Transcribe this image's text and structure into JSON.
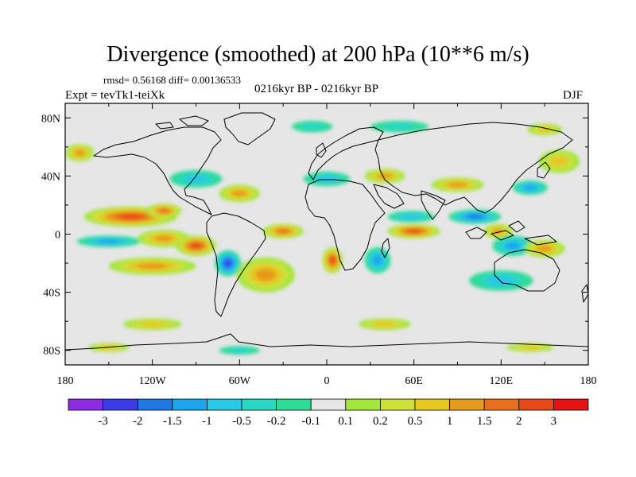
{
  "title": "Divergence (smoothed) at 200 hPa (10**6 m/s)",
  "stats": "rmsd= 0.56168  diff= 0.00136533",
  "experiment": "Expt = tevTk1-teiXk",
  "period": "0216kyr BP - 0216kyr BP",
  "season": "DJF",
  "colors": {
    "neutral": "#e6e6e6",
    "legend": [
      "#8b2be2",
      "#3b3bea",
      "#1e78e6",
      "#1ea4ec",
      "#29c8e6",
      "#2ad7c2",
      "#2edc96",
      "#e6e6e6",
      "#a3e63c",
      "#cde03c",
      "#e6c821",
      "#e69a1e",
      "#e8701c",
      "#e84818",
      "#e41414"
    ]
  },
  "axes": {
    "y_ticks": [
      {
        "value": 80,
        "label": "80N"
      },
      {
        "value": 40,
        "label": "40N"
      },
      {
        "value": 0,
        "label": "0"
      },
      {
        "value": -40,
        "label": "40S"
      },
      {
        "value": -80,
        "label": "80S"
      }
    ],
    "x_ticks": [
      {
        "value": -180,
        "label": "180"
      },
      {
        "value": -120,
        "label": "120W"
      },
      {
        "value": -60,
        "label": "60W"
      },
      {
        "value": 0,
        "label": "0"
      },
      {
        "value": 60,
        "label": "60E"
      },
      {
        "value": 120,
        "label": "120E"
      },
      {
        "value": 180,
        "label": "180"
      }
    ]
  },
  "legend_labels": [
    "-3",
    "-2",
    "-1.5",
    "-1",
    "-0.5",
    "-0.2",
    "-0.1",
    "0.1",
    "0.2",
    "0.5",
    "1",
    "1.5",
    "2",
    "3"
  ],
  "field_blobs": [
    {
      "lon": -135,
      "lat": 12,
      "rx": 32,
      "ry": 7,
      "value": 2.0
    },
    {
      "lon": -112,
      "lat": 16,
      "rx": 12,
      "ry": 5,
      "value": 1.6
    },
    {
      "lon": -150,
      "lat": -5,
      "rx": 22,
      "ry": 4,
      "value": -1.0
    },
    {
      "lon": -112,
      "lat": -3,
      "rx": 18,
      "ry": 6,
      "value": 1.4
    },
    {
      "lon": -90,
      "lat": -8,
      "rx": 14,
      "ry": 7,
      "value": 2.2
    },
    {
      "lon": -68,
      "lat": -20,
      "rx": 9,
      "ry": 9,
      "value": -2.4
    },
    {
      "lon": -120,
      "lat": -22,
      "rx": 30,
      "ry": 6,
      "value": 1.0
    },
    {
      "lon": -42,
      "lat": -28,
      "rx": 20,
      "ry": 12,
      "value": 1.0
    },
    {
      "lon": -30,
      "lat": 2,
      "rx": 14,
      "ry": 5,
      "value": 1.6
    },
    {
      "lon": 4,
      "lat": -18,
      "rx": 7,
      "ry": 9,
      "value": 2.0
    },
    {
      "lon": 35,
      "lat": -18,
      "rx": 9,
      "ry": 9,
      "value": -1.2
    },
    {
      "lon": 60,
      "lat": 2,
      "rx": 18,
      "ry": 5,
      "value": 2.6
    },
    {
      "lon": 58,
      "lat": 12,
      "rx": 16,
      "ry": 4,
      "value": -0.8
    },
    {
      "lon": 102,
      "lat": 12,
      "rx": 18,
      "ry": 5,
      "value": -1.8
    },
    {
      "lon": 118,
      "lat": 2,
      "rx": 10,
      "ry": 5,
      "value": 1.2
    },
    {
      "lon": 128,
      "lat": -8,
      "rx": 14,
      "ry": 7,
      "value": -1.2
    },
    {
      "lon": 150,
      "lat": -10,
      "rx": 14,
      "ry": 6,
      "value": 1.0
    },
    {
      "lon": 120,
      "lat": -32,
      "rx": 22,
      "ry": 7,
      "value": -0.7
    },
    {
      "lon": -170,
      "lat": 56,
      "rx": 10,
      "ry": 6,
      "value": 1.0
    },
    {
      "lon": -90,
      "lat": 38,
      "rx": 18,
      "ry": 6,
      "value": -0.8
    },
    {
      "lon": -60,
      "lat": 28,
      "rx": 14,
      "ry": 6,
      "value": 1.0
    },
    {
      "lon": 0,
      "lat": 38,
      "rx": 16,
      "ry": 5,
      "value": -0.9
    },
    {
      "lon": 40,
      "lat": 40,
      "rx": 14,
      "ry": 5,
      "value": 1.0
    },
    {
      "lon": 90,
      "lat": 34,
      "rx": 18,
      "ry": 5,
      "value": 1.0
    },
    {
      "lon": 140,
      "lat": 32,
      "rx": 12,
      "ry": 5,
      "value": -1.0
    },
    {
      "lon": 160,
      "lat": 50,
      "rx": 14,
      "ry": 8,
      "value": 0.7
    },
    {
      "lon": -10,
      "lat": 74,
      "rx": 14,
      "ry": 4,
      "value": -0.3
    },
    {
      "lon": 50,
      "lat": 74,
      "rx": 20,
      "ry": 4,
      "value": -0.3
    },
    {
      "lon": 150,
      "lat": 72,
      "rx": 12,
      "ry": 4,
      "value": 0.7
    },
    {
      "lon": -120,
      "lat": -62,
      "rx": 20,
      "ry": 4,
      "value": 0.7
    },
    {
      "lon": -150,
      "lat": -78,
      "rx": 14,
      "ry": 3,
      "value": 0.7
    },
    {
      "lon": 140,
      "lat": -78,
      "rx": 16,
      "ry": 3,
      "value": 0.9
    },
    {
      "lon": -60,
      "lat": -80,
      "rx": 14,
      "ry": 3,
      "value": -0.4
    },
    {
      "lon": 40,
      "lat": -62,
      "rx": 18,
      "ry": 4,
      "value": 0.5
    }
  ]
}
